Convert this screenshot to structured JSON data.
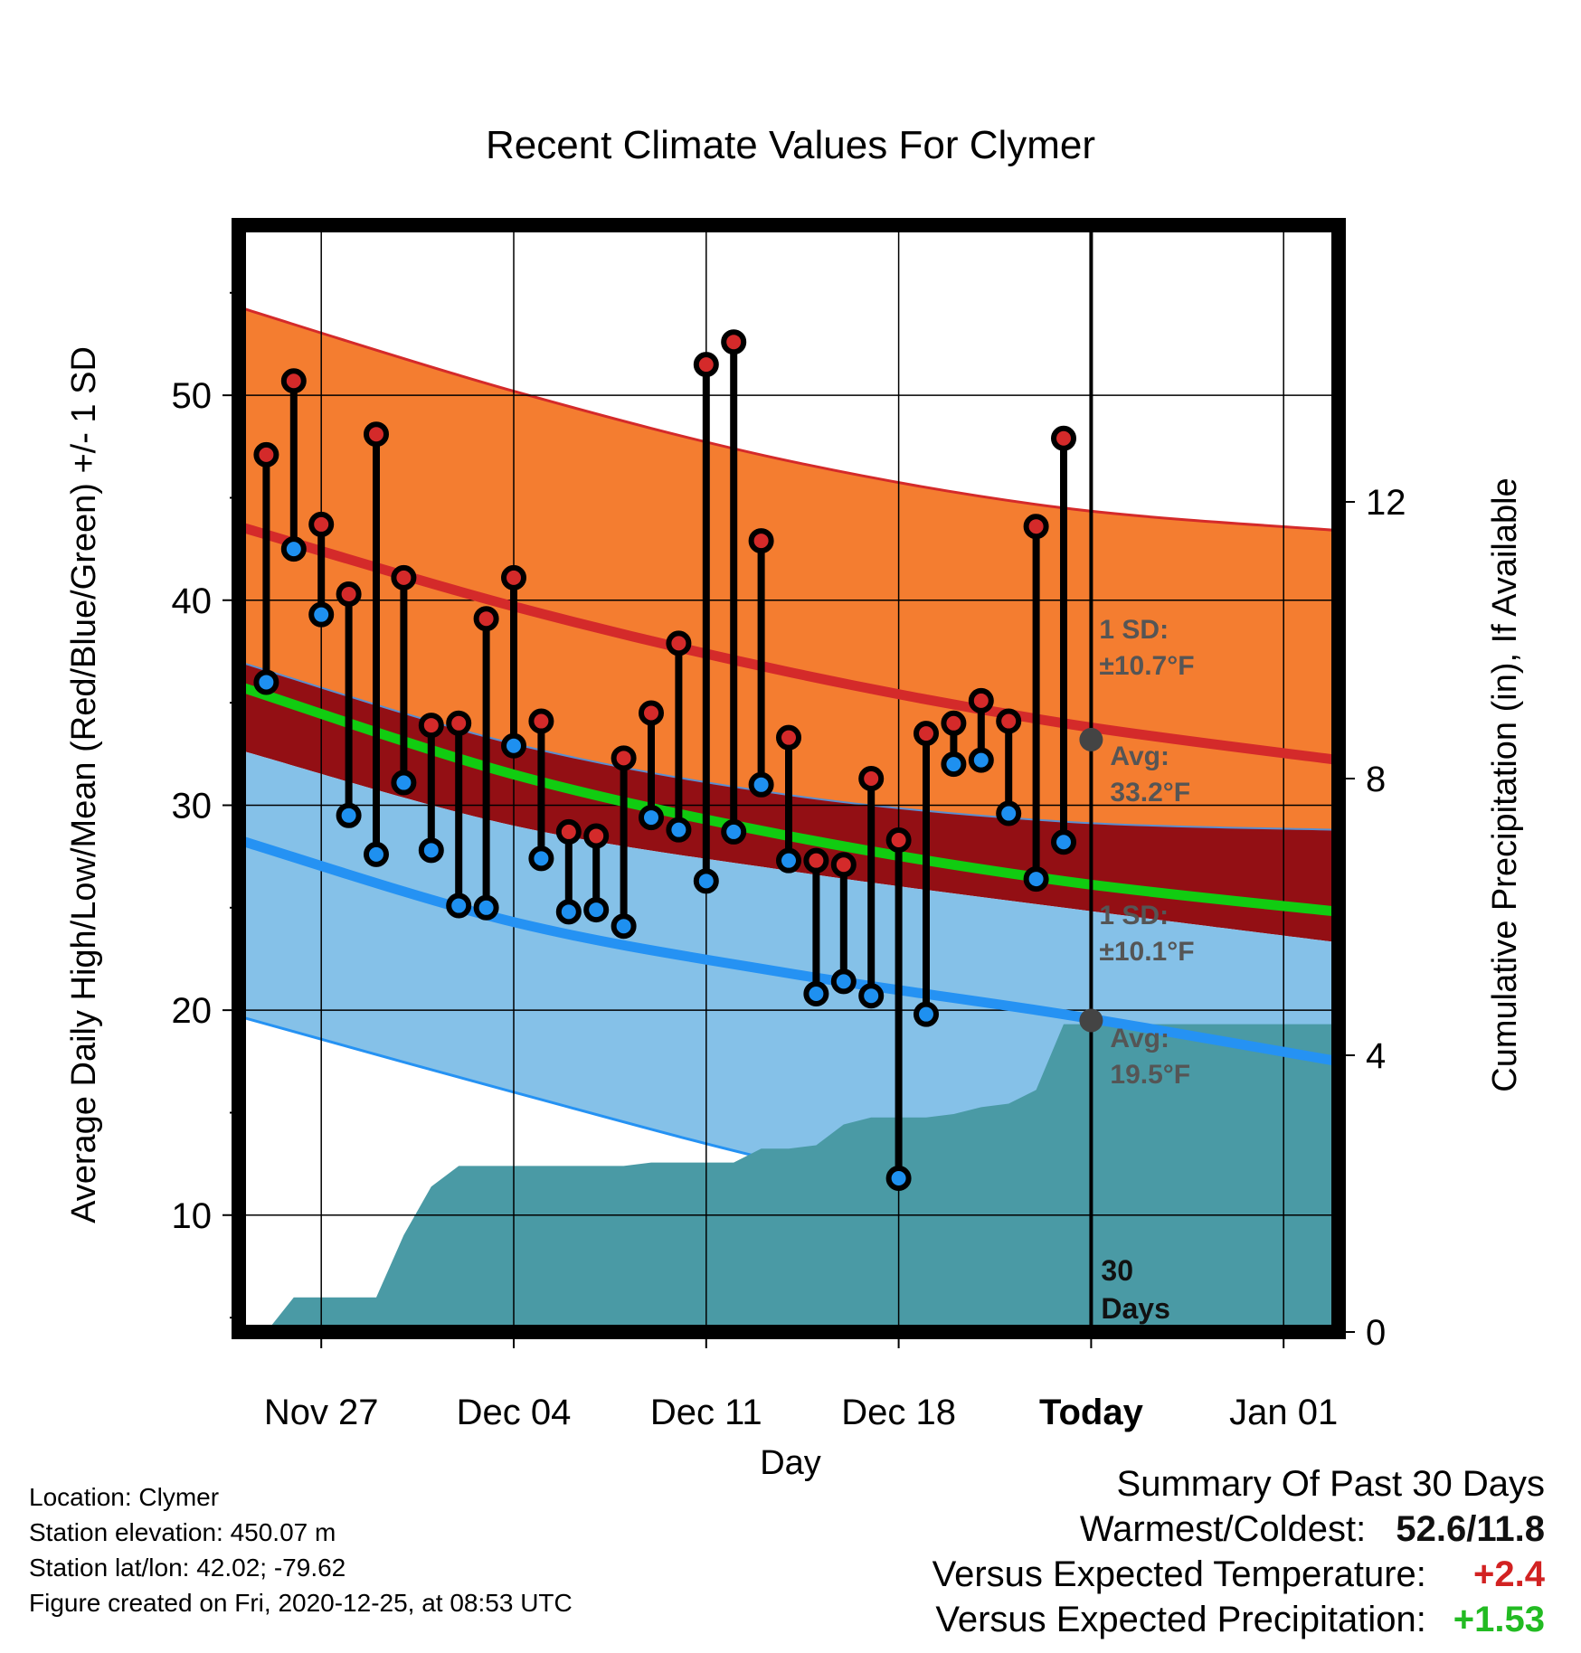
{
  "chart_data": {
    "type": "line",
    "title": "Recent Climate Values For Clymer",
    "xlabel": "Day",
    "ylabel": "Average Daily High/Low/Mean (Red/Blue/Green) +/- 1 SD",
    "ylabel_right": "Cumulative Precipitation (in), If Available",
    "x_ticks": [
      "Nov 27",
      "Dec 04",
      "Dec 11",
      "Dec 18",
      "Today",
      "Jan 01"
    ],
    "y_ticks": [
      10,
      20,
      30,
      40,
      50
    ],
    "y2_ticks": [
      0,
      4,
      8,
      12
    ],
    "ylim": [
      4.3,
      58.3
    ],
    "y2lim": [
      0,
      16
    ],
    "xlim": [
      "2020-11-24",
      "2021-01-03"
    ],
    "grid": true,
    "today": "2020-12-25",
    "normal_days": [
      "2020-11-24",
      "2020-12-04",
      "2020-12-14",
      "2020-12-24",
      "2021-01-03"
    ],
    "normal_high": [
      43.6,
      39.7,
      36.5,
      34.0,
      32.2
    ],
    "normal_high_upper": [
      54.3,
      50.2,
      46.8,
      44.5,
      43.4
    ],
    "normal_high_lower": [
      37.0,
      33.0,
      30.5,
      29.2,
      28.8
    ],
    "normal_mean": [
      35.8,
      31.5,
      28.5,
      26.3,
      24.8
    ],
    "normal_low": [
      28.3,
      24.3,
      21.8,
      19.8,
      17.5
    ],
    "normal_low_upper": [
      32.7,
      29.0,
      26.8,
      25.0,
      23.3
    ],
    "normal_low_lower": [
      19.7,
      16.0,
      12.5,
      9.8,
      8.0
    ],
    "days": [
      "2020-11-25",
      "2020-11-26",
      "2020-11-27",
      "2020-11-28",
      "2020-11-29",
      "2020-11-30",
      "2020-12-01",
      "2020-12-02",
      "2020-12-03",
      "2020-12-04",
      "2020-12-05",
      "2020-12-06",
      "2020-12-07",
      "2020-12-08",
      "2020-12-09",
      "2020-12-10",
      "2020-12-11",
      "2020-12-12",
      "2020-12-13",
      "2020-12-14",
      "2020-12-15",
      "2020-12-16",
      "2020-12-17",
      "2020-12-18",
      "2020-12-19",
      "2020-12-20",
      "2020-12-21",
      "2020-12-22",
      "2020-12-23",
      "2020-12-24"
    ],
    "series": [
      {
        "name": "High",
        "values": [
          47.1,
          50.7,
          43.7,
          40.3,
          48.1,
          41.1,
          33.9,
          34.0,
          39.1,
          41.1,
          34.1,
          28.7,
          28.5,
          32.3,
          34.5,
          37.9,
          51.5,
          52.6,
          42.9,
          33.3,
          27.3,
          27.1,
          31.3,
          28.3,
          33.5,
          34.0,
          35.1,
          34.1,
          43.6,
          47.9
        ]
      },
      {
        "name": "Low",
        "values": [
          36.0,
          42.5,
          39.3,
          29.5,
          27.6,
          31.1,
          27.8,
          25.1,
          25.0,
          32.9,
          27.4,
          24.8,
          24.9,
          24.1,
          29.4,
          28.8,
          26.3,
          28.7,
          31.0,
          27.3,
          20.8,
          21.4,
          20.7,
          11.8,
          19.8,
          32.0,
          32.2,
          29.6,
          26.4,
          28.2
        ]
      }
    ],
    "precip_days": [
      "2020-11-24",
      "2020-11-25",
      "2020-11-26",
      "2020-11-27",
      "2020-11-28",
      "2020-11-29",
      "2020-11-30",
      "2020-12-01",
      "2020-12-02",
      "2020-12-03",
      "2020-12-04",
      "2020-12-05",
      "2020-12-06",
      "2020-12-07",
      "2020-12-08",
      "2020-12-09",
      "2020-12-10",
      "2020-12-11",
      "2020-12-12",
      "2020-12-13",
      "2020-12-14",
      "2020-12-15",
      "2020-12-16",
      "2020-12-17",
      "2020-12-18",
      "2020-12-19",
      "2020-12-20",
      "2020-12-21",
      "2020-12-22",
      "2020-12-23",
      "2020-12-24",
      "2021-01-03"
    ],
    "precip_values": [
      0.0,
      0.0,
      0.5,
      0.5,
      0.5,
      0.5,
      1.4,
      2.1,
      2.4,
      2.4,
      2.4,
      2.4,
      2.4,
      2.4,
      2.4,
      2.45,
      2.45,
      2.45,
      2.45,
      2.65,
      2.65,
      2.7,
      3.0,
      3.1,
      3.1,
      3.1,
      3.15,
      3.25,
      3.3,
      3.5,
      4.45,
      4.45
    ],
    "annotations": {
      "high_sd": "1 SD:",
      "high_sd_value": "±10.7°F",
      "high_avg": "Avg:",
      "high_avg_value": "33.2°F",
      "low_sd": "1 SD:",
      "low_sd_value": "±10.1°F",
      "low_avg": "Avg:",
      "low_avg_value": "19.5°F",
      "days_count": "30",
      "days_word": "Days"
    },
    "colors": {
      "high_band": "#f47d30",
      "high_line": "#d42a2a",
      "mid_band": "#930f14",
      "mean_line": "#11cc11",
      "low_band": "#85c1e8",
      "low_line": "#2592f3",
      "precip": "#4a9aa5",
      "high_marker": "#d42a2a",
      "low_marker": "#1e90f0",
      "avg_marker": "#444444"
    }
  },
  "footer": {
    "location": "Location: Clymer",
    "elevation": "Station elevation: 450.07 m",
    "latlon": "Station lat/lon: 42.02; -79.62",
    "created": "Figure created on Fri, 2020-12-25, at 08:53 UTC"
  },
  "summary": {
    "heading": "Summary Of Past 30 Days",
    "warm_cold_label": "Warmest/Coldest:",
    "warm_cold_value": "52.6/11.8",
    "temp_label": "Versus Expected Temperature:",
    "temp_value": "+2.4",
    "precip_label": "Versus Expected Precipitation:",
    "precip_value": "+1.53"
  }
}
